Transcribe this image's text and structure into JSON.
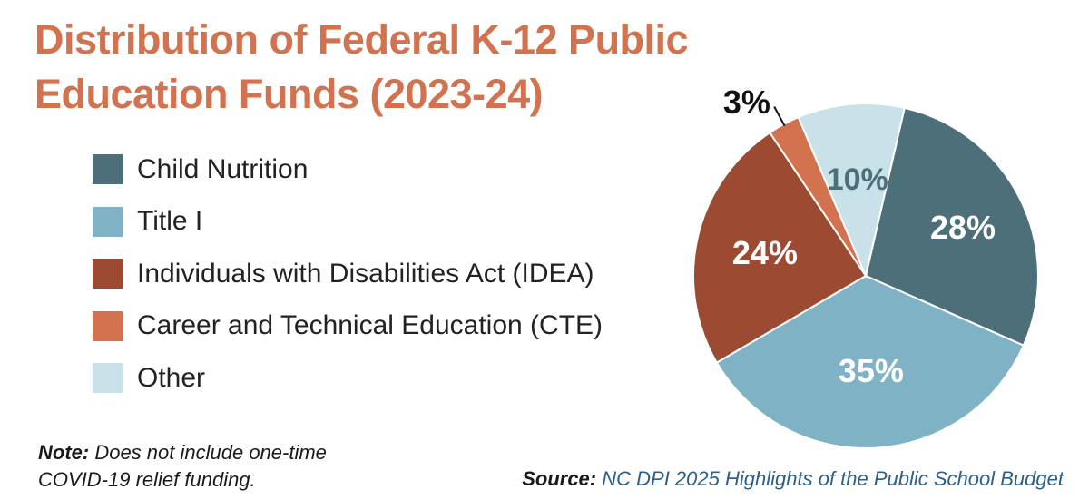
{
  "chart_data": {
    "type": "pie",
    "title": "Distribution of Federal K-12 Public Education Funds (2023-24)",
    "categories": [
      "Child Nutrition",
      "Title I",
      "Individuals with Disabilities Act (IDEA)",
      "Career and Technical Education (CTE)",
      "Other"
    ],
    "values": [
      28,
      35,
      24,
      3,
      10
    ],
    "value_labels": [
      "28%",
      "35%",
      "24%",
      "3%",
      "10%"
    ],
    "colors": [
      "#4d6f7a",
      "#7fb2c5",
      "#9c4a32",
      "#d2724e",
      "#c9e1e9"
    ],
    "label_colors": [
      "#ffffff",
      "#ffffff",
      "#ffffff",
      "#111111",
      "#4d6f7a"
    ],
    "legend": "left"
  },
  "note": {
    "label": "Note:",
    "text": " Does not include one-time COVID-19 relief funding."
  },
  "source": {
    "label": "Source:",
    "text": "NC DPI 2025 Highlights of the Public School Budget"
  }
}
